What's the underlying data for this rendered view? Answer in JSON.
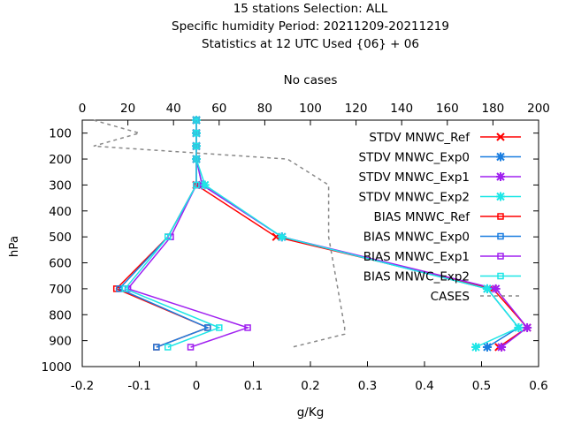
{
  "chart_data": {
    "type": "line",
    "title_lines": [
      "15 stations Selection: ALL",
      "Specific humidity  Period: 20211209-20211219",
      "Statistics at 12 UTC  Used {06} + 06"
    ],
    "xlabel": "g/Kg",
    "ylabel": "hPa",
    "x2label": "No cases",
    "xlim": [
      -0.2,
      0.6
    ],
    "ylim": [
      1000,
      50
    ],
    "x2lim": [
      0,
      200
    ],
    "xticks": [
      "-0.2",
      "-0.1",
      "0",
      "0.1",
      "0.2",
      "0.3",
      "0.4",
      "0.5",
      "0.6"
    ],
    "yticks": [
      "100",
      "200",
      "300",
      "400",
      "500",
      "600",
      "700",
      "800",
      "900",
      "1000"
    ],
    "x2ticks": [
      "0",
      "20",
      "40",
      "60",
      "80",
      "100",
      "120",
      "140",
      "160",
      "180",
      "200"
    ],
    "legend_position": "top-right",
    "colors": {
      "STDV_Ref": "#ff0000",
      "STDV_Exp0": "#1a7ee0",
      "STDV_Exp1": "#a020f0",
      "STDV_Exp2": "#1ee6e6",
      "BIAS_Ref": "#ff0000",
      "BIAS_Exp0": "#1a7ee0",
      "BIAS_Exp1": "#a020f0",
      "BIAS_Exp2": "#1ee6e6",
      "CASES": "#888888"
    },
    "series": [
      {
        "name": "STDV MNWC_Ref",
        "key": "STDV_Ref",
        "marker": "x",
        "points": [
          [
            0.0,
            50
          ],
          [
            0.0,
            100
          ],
          [
            0.0,
            150
          ],
          [
            0.0,
            200
          ],
          [
            0.0,
            300
          ],
          [
            0.14,
            500
          ],
          [
            0.52,
            700
          ],
          [
            0.58,
            850
          ],
          [
            0.53,
            925
          ]
        ]
      },
      {
        "name": "STDV MNWC_Exp0",
        "key": "STDV_Exp0",
        "marker": "asterisk",
        "points": [
          [
            0.0,
            50
          ],
          [
            0.0,
            100
          ],
          [
            0.0,
            150
          ],
          [
            0.0,
            200
          ],
          [
            0.01,
            300
          ],
          [
            0.15,
            500
          ],
          [
            0.51,
            700
          ],
          [
            0.565,
            850
          ],
          [
            0.51,
            925
          ]
        ]
      },
      {
        "name": "STDV MNWC_Exp1",
        "key": "STDV_Exp1",
        "marker": "asterisk",
        "points": [
          [
            0.0,
            50
          ],
          [
            0.0,
            100
          ],
          [
            0.0,
            150
          ],
          [
            0.0,
            200
          ],
          [
            0.01,
            300
          ],
          [
            0.15,
            500
          ],
          [
            0.525,
            700
          ],
          [
            0.58,
            850
          ],
          [
            0.535,
            925
          ]
        ]
      },
      {
        "name": "STDV MNWC_Exp2",
        "key": "STDV_Exp2",
        "marker": "asterisk",
        "points": [
          [
            0.0,
            50
          ],
          [
            0.0,
            100
          ],
          [
            0.0,
            150
          ],
          [
            0.0,
            200
          ],
          [
            0.015,
            300
          ],
          [
            0.15,
            500
          ],
          [
            0.51,
            700
          ],
          [
            0.565,
            850
          ],
          [
            0.49,
            925
          ]
        ]
      },
      {
        "name": "BIAS MNWC_Ref",
        "key": "BIAS_Ref",
        "marker": "square",
        "points": [
          [
            0.0,
            50
          ],
          [
            0.0,
            100
          ],
          [
            0.0,
            150
          ],
          [
            0.0,
            200
          ],
          [
            0.0,
            300
          ],
          [
            -0.05,
            500
          ],
          [
            -0.14,
            700
          ],
          [
            0.02,
            850
          ],
          [
            -0.07,
            925
          ]
        ]
      },
      {
        "name": "BIAS MNWC_Exp0",
        "key": "BIAS_Exp0",
        "marker": "square",
        "points": [
          [
            0.0,
            50
          ],
          [
            0.0,
            100
          ],
          [
            0.0,
            150
          ],
          [
            0.0,
            200
          ],
          [
            0.0,
            300
          ],
          [
            -0.05,
            500
          ],
          [
            -0.135,
            700
          ],
          [
            0.02,
            850
          ],
          [
            -0.07,
            925
          ]
        ]
      },
      {
        "name": "BIAS MNWC_Exp1",
        "key": "BIAS_Exp1",
        "marker": "square",
        "points": [
          [
            0.0,
            50
          ],
          [
            0.0,
            100
          ],
          [
            0.0,
            150
          ],
          [
            0.0,
            200
          ],
          [
            0.0,
            300
          ],
          [
            -0.045,
            500
          ],
          [
            -0.12,
            700
          ],
          [
            0.09,
            850
          ],
          [
            -0.01,
            925
          ]
        ]
      },
      {
        "name": "BIAS MNWC_Exp2",
        "key": "BIAS_Exp2",
        "marker": "square",
        "points": [
          [
            0.0,
            50
          ],
          [
            0.0,
            100
          ],
          [
            0.0,
            150
          ],
          [
            0.0,
            200
          ],
          [
            0.0,
            300
          ],
          [
            -0.05,
            500
          ],
          [
            -0.125,
            700
          ],
          [
            0.04,
            850
          ],
          [
            -0.05,
            925
          ]
        ]
      },
      {
        "name": "CASES",
        "key": "CASES",
        "axis": "x2",
        "dashed": true,
        "points": [
          [
            5,
            50
          ],
          [
            25,
            100
          ],
          [
            5,
            150
          ],
          [
            90,
            200
          ],
          [
            108,
            300
          ],
          [
            108,
            500
          ],
          [
            112,
            700
          ],
          [
            115,
            850
          ],
          [
            115,
            875
          ],
          [
            92,
            925
          ]
        ]
      }
    ]
  }
}
